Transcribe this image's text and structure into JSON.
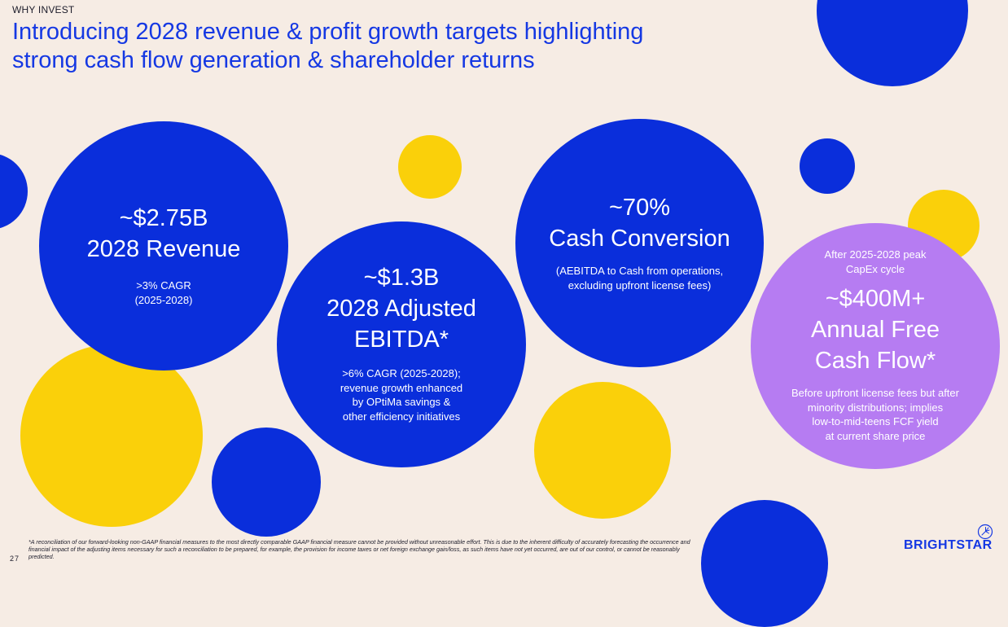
{
  "header": {
    "eyebrow": "WHY INVEST",
    "title_line1": "Introducing 2028 revenue & profit growth targets highlighting",
    "title_line2": "strong cash flow generation & shareholder returns"
  },
  "kpis": {
    "revenue": {
      "value": "~$2.75B",
      "label": "2028 Revenue",
      "note_line1": ">3% CAGR",
      "note_line2": "(2025-2028)"
    },
    "ebitda": {
      "value": "~$1.3B",
      "label_line1": "2028 Adjusted",
      "label_line2": "EBITDA*",
      "note_line1": ">6% CAGR (2025-2028);",
      "note_line2": "revenue growth enhanced",
      "note_line3": "by OPtiMa savings &",
      "note_line4": "other efficiency initiatives"
    },
    "cash_conversion": {
      "value": "~70%",
      "label": "Cash Conversion",
      "note_line1": "(AEBITDA to Cash from operations,",
      "note_line2": "excluding upfront license fees)"
    },
    "fcf": {
      "pre_line1": "After 2025-2028 peak",
      "pre_line2": "CapEx cycle",
      "value": "~$400M+",
      "label_line1": "Annual Free",
      "label_line2": "Cash Flow*",
      "note_line1": "Before upfront license fees but after",
      "note_line2": "minority distributions; implies",
      "note_line3": "low-to-mid-teens FCF yield",
      "note_line4": "at current share price"
    }
  },
  "footer": {
    "footnote": "*A reconciliation of our forward-looking non-GAAP financial measures to the most directly comparable GAAP financial measure cannot be provided without unreasonable effort. This is due to the inherent difficulty of accurately forecasting the occurrence and financial impact of the adjusting items necessary for such a reconciliation to be prepared, for example, the provision for income taxes or net foreign exchange gain/loss, as such items have not yet occurred, are out of our control, or cannot be reasonably predicted.",
    "page_number": "27",
    "logo_text": "BRIGHTSTAR"
  },
  "colors": {
    "blue": "#0A2EDB",
    "yellow": "#FAD00A",
    "purple": "#B67CF2",
    "background": "#F6ECE4",
    "title": "#1538E3"
  },
  "icons": {
    "logo_mark": "star-burst-icon"
  }
}
